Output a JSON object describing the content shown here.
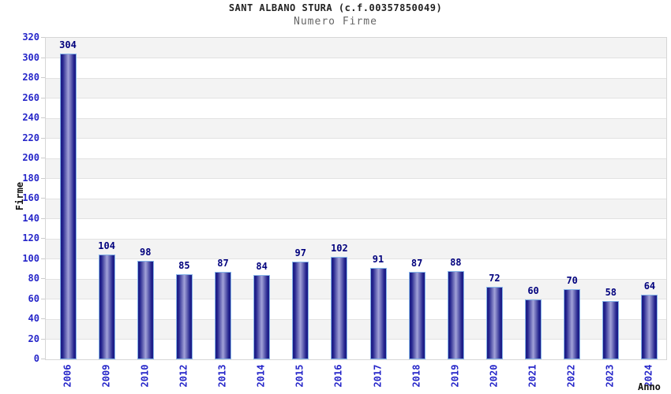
{
  "chart_data": {
    "type": "bar",
    "title": "SANT ALBANO STURA (c.f.00357850049)",
    "subtitle": "Numero Firme",
    "xlabel": "Anno",
    "ylabel": "Firme",
    "categories": [
      "2006",
      "2009",
      "2010",
      "2012",
      "2013",
      "2014",
      "2015",
      "2016",
      "2017",
      "2018",
      "2019",
      "2020",
      "2021",
      "2022",
      "2023",
      "2024"
    ],
    "values": [
      304,
      104,
      98,
      85,
      87,
      84,
      97,
      102,
      91,
      87,
      88,
      72,
      60,
      70,
      58,
      64
    ],
    "ylim": [
      0,
      320
    ],
    "ytick_step": 20,
    "grid": "horizontal-alternating-bands",
    "legend": "none",
    "colors": {
      "title": "#222222",
      "subtitle": "#666666",
      "axis_label": "#111111",
      "tick_label": "#2626c9",
      "value_label": "#00007d",
      "bar_edge": "#1b1b85",
      "bar_dark": "#23238d",
      "bar_highlight": "#a2a2d8",
      "bar_border": "#85b4e8",
      "band_gray": "#f3f3f3",
      "band_white": "#ffffff",
      "grid_line": "#e2e2e2",
      "tick_mark": "#cccccc",
      "plot_border": "#d6d6d6",
      "background": "#ffffff"
    }
  }
}
